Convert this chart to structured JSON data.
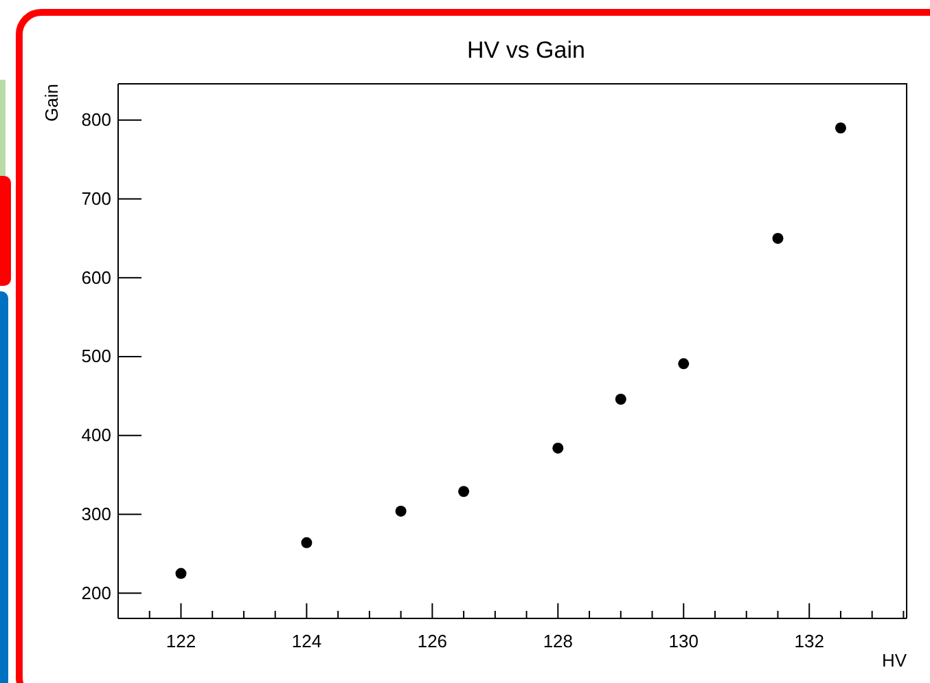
{
  "chart_data": {
    "type": "scatter",
    "title": "HV vs Gain",
    "xlabel": "HV",
    "ylabel": "Gain",
    "marker": "circle",
    "grid": false,
    "x": [
      122,
      124,
      125.5,
      126.5,
      128,
      129,
      130,
      131.5,
      132.5
    ],
    "series": [
      {
        "color": "#000000",
        "values": [
          225,
          264,
          304,
          329,
          384,
          446,
          491,
          650,
          790
        ]
      }
    ],
    "xlim": [
      121,
      133.55
    ],
    "xticks": [
      {
        "value": 121.5,
        "label": null
      },
      122,
      {
        "value": 122.5,
        "label": null
      },
      {
        "value": 123,
        "label": null
      },
      {
        "value": 123.5,
        "label": null
      },
      124,
      {
        "value": 124.5,
        "label": null
      },
      {
        "value": 125,
        "label": null
      },
      {
        "value": 125.5,
        "label": null
      },
      126,
      {
        "value": 126.5,
        "label": null
      },
      {
        "value": 127,
        "label": null
      },
      {
        "value": 127.5,
        "label": null
      },
      128,
      {
        "value": 128.5,
        "label": null
      },
      {
        "value": 129,
        "label": null
      },
      {
        "value": 129.5,
        "label": null
      },
      130,
      {
        "value": 130.5,
        "label": null
      },
      {
        "value": 131,
        "label": null
      },
      {
        "value": 131.5,
        "label": null
      },
      132,
      {
        "value": 132.5,
        "label": null
      },
      {
        "value": 133,
        "label": null
      },
      {
        "value": 133.5,
        "label": null
      }
    ],
    "ylim": [
      168,
      846
    ],
    "yticks": [
      200,
      300,
      400,
      500,
      600,
      700,
      800
    ]
  }
}
